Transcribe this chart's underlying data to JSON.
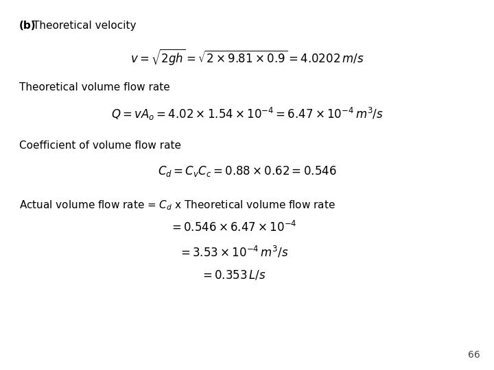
{
  "background_color": "#ffffff",
  "title_bold": "(b)",
  "title_text": " Theoretical velocity",
  "eq1": "$v = \\sqrt{2gh} = \\sqrt{2 \\times 9.81 \\times 0.9} = 4.0202\\,m/s$",
  "label2": "Theoretical volume flow rate",
  "eq2": "$Q = vA_o = 4.02 \\times 1.54 \\times 10^{-4} = 6.47 \\times 10^{-4}\\,m^3/s$",
  "label3": "Coefficient of volume flow rate",
  "eq3": "$C_d = C_v C_c = 0.88 \\times 0.62 = 0.546$",
  "label4": "Actual volume flow rate = $C_d$ x Theoretical volume flow rate",
  "eq4a": "$= 0.546 \\times 6.47 \\times 10^{-4}$",
  "eq4b": "$= 3.53 \\times 10^{-4}\\,m^3/s$",
  "eq4c": "$= 0.353\\,L/s$",
  "page_num": "66",
  "font_size_label": 11,
  "font_size_eq": 12,
  "font_size_title": 11,
  "font_size_page": 10
}
